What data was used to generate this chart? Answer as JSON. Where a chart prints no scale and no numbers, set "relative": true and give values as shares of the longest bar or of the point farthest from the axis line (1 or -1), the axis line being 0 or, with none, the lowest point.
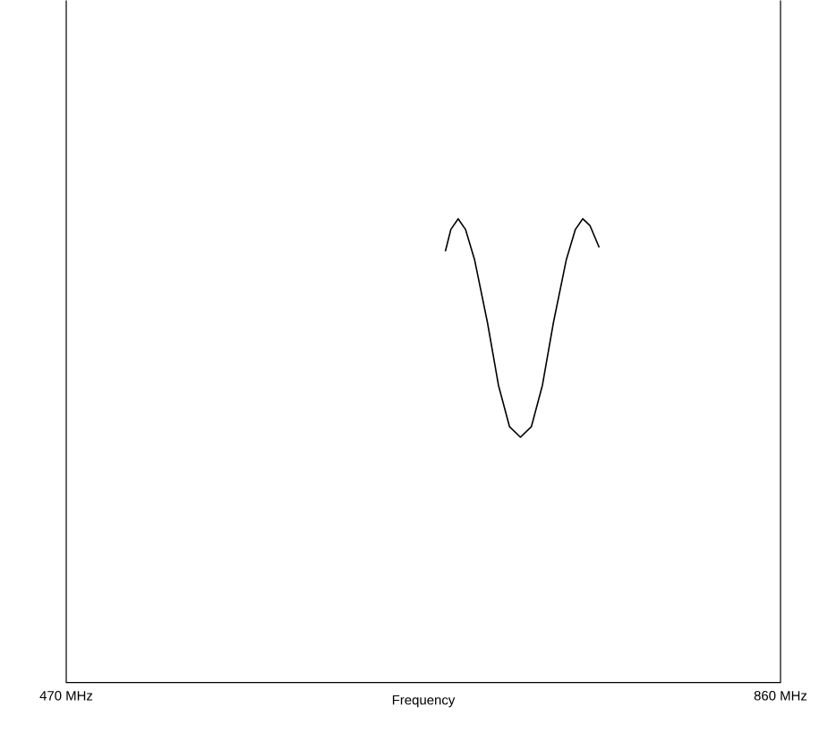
{
  "chart_data": {
    "type": "line",
    "relative": true,
    "xlabel": "Frequency",
    "xlim": [
      470,
      860
    ],
    "xticks": [
      {
        "value": 470,
        "label": "470 MHz"
      },
      {
        "value": 860,
        "label": "860 MHz"
      }
    ],
    "x": [
      677,
      680,
      684,
      688,
      693,
      700,
      706,
      712,
      718,
      724,
      730,
      736,
      743,
      748,
      752,
      756,
      761
    ],
    "series": [
      {
        "color": "#000000",
        "values": [
          0.93,
          0.977,
          1,
          0.977,
          0.911,
          0.776,
          0.641,
          0.552,
          0.529,
          0.552,
          0.641,
          0.776,
          0.911,
          0.977,
          1,
          0.985,
          0.938
        ]
      }
    ],
    "marker": "none",
    "line_style": "solid"
  }
}
